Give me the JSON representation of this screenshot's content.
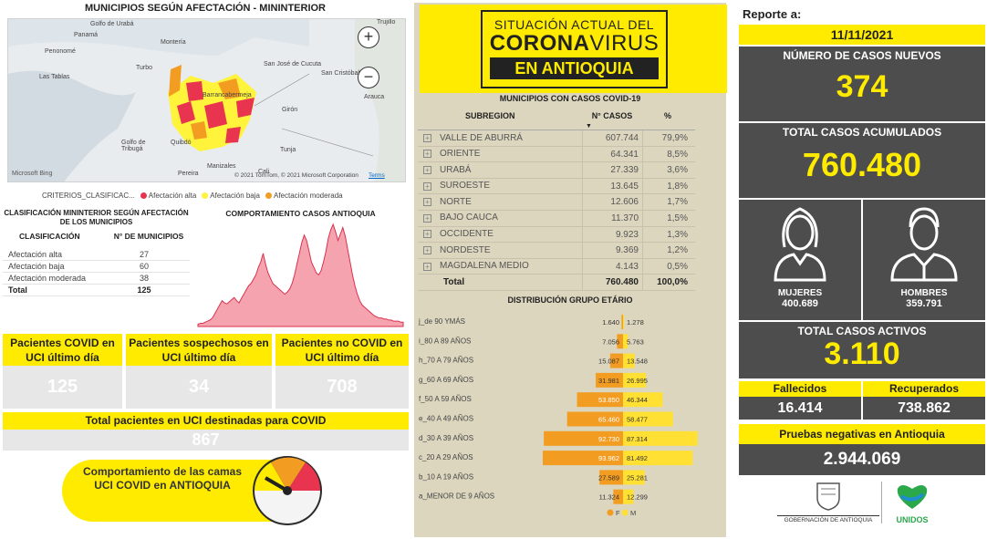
{
  "map": {
    "title": "MUNICIPIOS SEGÚN AFECTACIÓN - MININTERIOR",
    "zoom_in": "+",
    "zoom_out": "−",
    "labels": [
      "Golfo de Urabá",
      "Trujillo",
      "Panamá",
      "Penonomé",
      "Las Tablas",
      "Montería",
      "Turbo",
      "San José de Cucuta",
      "San Cristóbal",
      "Barrancabermeja",
      "Arauca",
      "Girón",
      "Quibdó",
      "Golfo de Tribugá",
      "Manizales",
      "Pereira",
      "Tunja",
      "Cali"
    ],
    "bing": "Microsoft Bing",
    "copyright": "© 2021 TomTom, © 2021 Microsoft Corporation",
    "terms": "Terms"
  },
  "legend": {
    "label": "CRITERIOS_CLASIFICAC...",
    "items": [
      {
        "label": "Afectación alta",
        "color": "#e8344e"
      },
      {
        "label": "Afectación baja",
        "color": "#fff33b"
      },
      {
        "label": "Afectación moderada",
        "color": "#f39c22"
      }
    ]
  },
  "clasificacion": {
    "title": "CLASIFICACIÓN MININTERIOR SEGÚN AFECTACIÓN DE LOS MUNICIPIOS",
    "col1": "CLASIFICACIÓN",
    "col2": "N° DE MUNICIPIOS",
    "rows": [
      {
        "label": "Afectación alta",
        "value": "27"
      },
      {
        "label": "Afectación baja",
        "value": "60"
      },
      {
        "label": "Afectación moderada",
        "value": "38"
      },
      {
        "label": "Total",
        "value": "125"
      }
    ]
  },
  "trend": {
    "title": "COMPORTAMIENTO CASOS ANTIOQUIA",
    "values": [
      2,
      3,
      3,
      4,
      5,
      6,
      8,
      12,
      16,
      20,
      24,
      22,
      21,
      23,
      25,
      27,
      24,
      22,
      26,
      30,
      34,
      38,
      40,
      44,
      48,
      55,
      60,
      68,
      58,
      50,
      45,
      40,
      38,
      36,
      34,
      32,
      30,
      32,
      35,
      40,
      48,
      58,
      68,
      78,
      85,
      80,
      70,
      60,
      55,
      50,
      48,
      52,
      60,
      70,
      82,
      90,
      95,
      88,
      80,
      86,
      92,
      84,
      72,
      60,
      48,
      38,
      30,
      24,
      20,
      18,
      16,
      14,
      12,
      10,
      9,
      8,
      8,
      7,
      7,
      6,
      6,
      5,
      5,
      5,
      4,
      4
    ]
  },
  "uci": [
    {
      "label": "Pacientes COVID en UCI último día",
      "value": "125"
    },
    {
      "label": "Pacientes sospechosos en UCI último día",
      "value": "34"
    },
    {
      "label": "Pacientes no COVID en UCI último día",
      "value": "708"
    }
  ],
  "total_uci": {
    "label": "Total pacientes en UCI destinadas para COVID",
    "value": "867"
  },
  "gauge_banner": {
    "label": "Comportamiento de las camas UCI COVID en ANTIOQUIA"
  },
  "logo": {
    "line1": "SITUACIÓN ACTUAL DEL",
    "line2a": "CORONA",
    "line2b": "VIRUS",
    "line3": "EN ANTIOQUIA"
  },
  "municipios": {
    "title": "MUNICIPIOS CON CASOS COVID-19",
    "col1": "SUBREGION",
    "col2": "N° CASOS",
    "col3": "%",
    "rows": [
      {
        "name": "VALLE DE ABURRÁ",
        "cases": "607.744",
        "pct": "79,9%"
      },
      {
        "name": "ORIENTE",
        "cases": "64.341",
        "pct": "8,5%"
      },
      {
        "name": "URABÁ",
        "cases": "27.339",
        "pct": "3,6%"
      },
      {
        "name": "SUROESTE",
        "cases": "13.645",
        "pct": "1,8%"
      },
      {
        "name": "NORTE",
        "cases": "12.606",
        "pct": "1,7%"
      },
      {
        "name": "BAJO CAUCA",
        "cases": "11.370",
        "pct": "1,5%"
      },
      {
        "name": "OCCIDENTE",
        "cases": "9.923",
        "pct": "1,3%"
      },
      {
        "name": "NORDESTE",
        "cases": "9.369",
        "pct": "1,2%"
      },
      {
        "name": "MAGDALENA MEDIO",
        "cases": "4.143",
        "pct": "0,5%"
      }
    ],
    "total": {
      "name": "Total",
      "cases": "760.480",
      "pct": "100,0%"
    }
  },
  "age": {
    "title": "DISTRIBUCIÓN GRUPO ETÁRIO",
    "legend_f": "F",
    "legend_m": "M",
    "groups": [
      {
        "label": "j_de 90 YMÁS",
        "f": 1640,
        "m": 1278,
        "f_label": "1.640",
        "m_label": "1.278"
      },
      {
        "label": "i_80 A 89 AÑOS",
        "f": 7056,
        "m": 5763,
        "f_label": "7.056",
        "m_label": "5.763"
      },
      {
        "label": "h_70 A 79 AÑOS",
        "f": 15087,
        "m": 13548,
        "f_label": "15.087",
        "m_label": "13.548"
      },
      {
        "label": "g_60 A 69 AÑOS",
        "f": 31981,
        "m": 26995,
        "f_label": "31.981",
        "m_label": "26.995"
      },
      {
        "label": "f_50 A 59 AÑOS",
        "f": 53850,
        "m": 46344,
        "f_label": "53.850",
        "m_label": "46.344"
      },
      {
        "label": "e_40 A 49 AÑOS",
        "f": 65460,
        "m": 58477,
        "f_label": "65.460",
        "m_label": "58.477"
      },
      {
        "label": "d_30 A 39 AÑOS",
        "f": 92730,
        "m": 87314,
        "f_label": "92.730",
        "m_label": "87.314"
      },
      {
        "label": "c_20 A 29 AÑOS",
        "f": 93962,
        "m": 81492,
        "f_label": "93.962",
        "m_label": "81.492"
      },
      {
        "label": "b_10 A 19 AÑOS",
        "f": 27589,
        "m": 25281,
        "f_label": "27.589",
        "m_label": "25.281"
      },
      {
        "label": "a_MENOR DE 9 AÑOS",
        "f": 11324,
        "m": 12299,
        "f_label": "11.324",
        "m_label": "12.299"
      }
    ],
    "colors": {
      "f": "#f39c22",
      "m": "#ffe033"
    }
  },
  "reporte": {
    "label": "Reporte a:",
    "date": "11/11/2021"
  },
  "nuevos": {
    "label": "NÚMERO DE CASOS NUEVOS",
    "value": "374"
  },
  "acumulados": {
    "label": "TOTAL CASOS ACUMULADOS",
    "value": "760.480"
  },
  "mujeres": {
    "label": "MUJERES",
    "value": "400.689"
  },
  "hombres": {
    "label": "HOMBRES",
    "value": "359.791"
  },
  "activos": {
    "label": "TOTAL CASOS ACTIVOS",
    "value": "3.110"
  },
  "fallecidos": {
    "label": "Fallecidos",
    "value": "16.414"
  },
  "recuperados": {
    "label": "Recuperados",
    "value": "738.862"
  },
  "negativas": {
    "label": "Pruebas negativas en Antioquia",
    "value": "2.944.069"
  },
  "gov_logo": {
    "label": "GOBERNACIÓN DE ANTIOQUIA"
  },
  "unidos_logo": {
    "label": "UNIDOS"
  }
}
